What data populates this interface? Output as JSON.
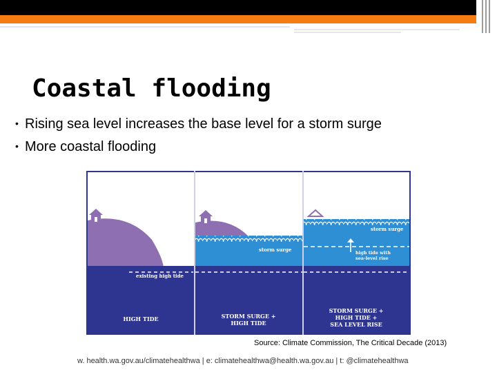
{
  "title": "Coastal flooding",
  "bullets": [
    "Rising sea level increases the base level for a storm surge",
    "More coastal flooding"
  ],
  "figure": {
    "panels": [
      {
        "caption_lines": [
          "HIGH TIDE"
        ],
        "line_label": "existing high tide"
      },
      {
        "caption_lines": [
          "STORM SURGE +",
          "HIGH TIDE"
        ],
        "surge_label": "storm surge"
      },
      {
        "caption_lines": [
          "STORM SURGE +",
          "HIGH TIDE +",
          "SEA LEVEL RISE"
        ],
        "surge_label": "storm surge",
        "rise_label_lines": [
          "high tide with",
          "sea-level rise"
        ]
      }
    ],
    "colors": {
      "land": "#8e6fb2",
      "deep_water": "#2e3590",
      "surge_water": "#2f8fd5",
      "background": "#ffffff"
    }
  },
  "source": "Source: Climate Commission, The Critical Decade (2013)",
  "footer": "w. health.wa.gov.au/climatehealthwa  |  e: climatehealthwa@health.wa.gov.au  |  t: @climatehealthwa"
}
